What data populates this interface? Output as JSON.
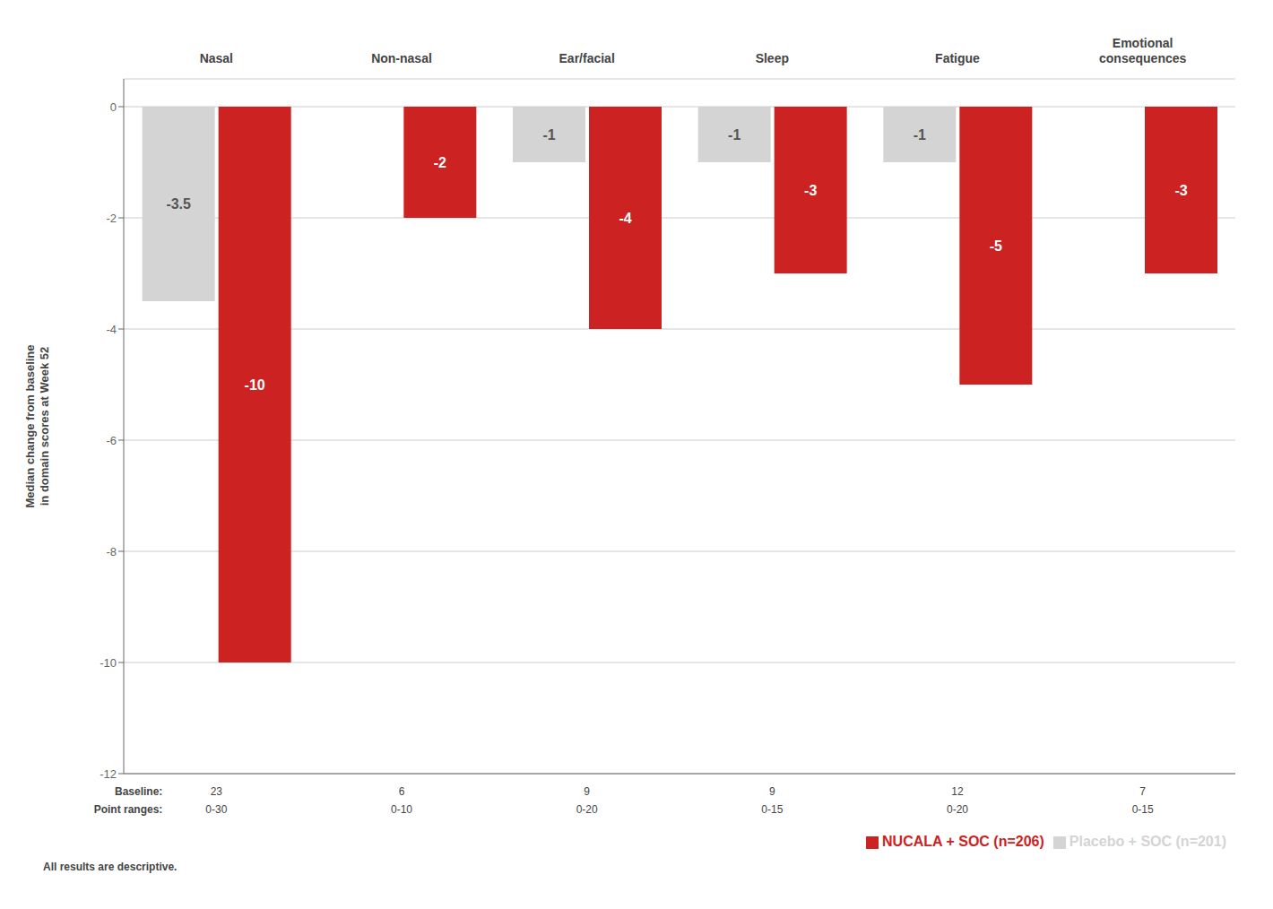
{
  "chart_data": {
    "type": "bar",
    "categories": [
      "Nasal",
      "Non-nasal",
      "Ear/facial",
      "Sleep",
      "Fatigue",
      "Emotional\nconsequences"
    ],
    "series": [
      {
        "name": "Placebo + SOC (n=201)",
        "color": "#d4d4d4",
        "values": [
          -3.5,
          0,
          -1,
          -1,
          -1,
          0
        ]
      },
      {
        "name": "NUCALA + SOC (n=206)",
        "color": "#cc2222",
        "values": [
          -10,
          -2,
          -4,
          -3,
          -5,
          -3
        ]
      }
    ],
    "ylabel": "Median change from baseline\nin domain scores at Week 52",
    "ylim": [
      -12,
      0.5
    ],
    "yticks": [
      0,
      -2,
      -4,
      -6,
      -8,
      -10,
      -12
    ],
    "grid": true,
    "legend": "lower right",
    "data_labels": true,
    "baseline": {
      "label": "Baseline:",
      "values": [
        23,
        6,
        9,
        9,
        12,
        7
      ]
    },
    "point_ranges": {
      "label": "Point ranges:",
      "values": [
        "0-30",
        "0-10",
        "0-20",
        "0-15",
        "0-20",
        "0-15"
      ]
    },
    "footnote": "All results are descriptive."
  }
}
